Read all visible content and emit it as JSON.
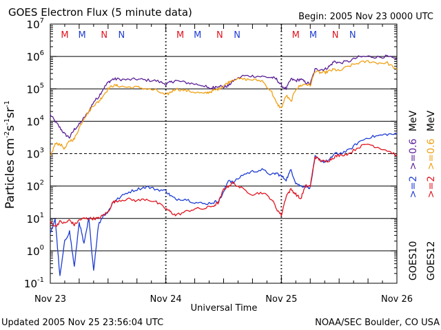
{
  "chart_data": {
    "type": "line",
    "title": "GOES Electron Flux (5 minute data)",
    "begin_label": "Begin: 2005 Nov 23 0000 UTC",
    "xlabel": "Universal Time",
    "ylabel_parts": {
      "base": "Particles cm",
      "exp1": "-2",
      "mid1": "s",
      "exp2": "-1",
      "mid2": "sr",
      "exp3": "-1"
    },
    "updated": "Updated 2005 Nov 25 23:56:04 UTC",
    "credit": "NOAA/SEC Boulder, CO USA",
    "xlim": [
      0,
      72
    ],
    "ylim_log10": [
      -1,
      7
    ],
    "x_ticks": [
      {
        "hour": 0,
        "label": "Nov 23"
      },
      {
        "hour": 24,
        "label": "Nov 24"
      },
      {
        "hour": 48,
        "label": "Nov 25"
      },
      {
        "hour": 72,
        "label": "Nov 26"
      }
    ],
    "y_ticks": [
      {
        "exp": -1,
        "mant": "10",
        "sup": "-1"
      },
      {
        "exp": 0,
        "mant": "10",
        "sup": "0"
      },
      {
        "exp": 1,
        "mant": "10",
        "sup": "1"
      },
      {
        "exp": 2,
        "mant": "10",
        "sup": "2"
      },
      {
        "exp": 3,
        "mant": "10",
        "sup": "3"
      },
      {
        "exp": 4,
        "mant": "10",
        "sup": "4"
      },
      {
        "exp": 5,
        "mant": "10",
        "sup": "5"
      },
      {
        "exp": 6,
        "mant": "10",
        "sup": "6"
      },
      {
        "exp": 7,
        "mant": "10",
        "sup": "7"
      }
    ],
    "gridlines_log10": [
      0,
      1,
      2,
      4,
      5,
      6
    ],
    "dashed_gridlines_log10": [
      3
    ],
    "midnight_dotted_hours": [
      24,
      48
    ],
    "markers": [
      {
        "label": "M",
        "hour": 3.0,
        "color": "#e0141e"
      },
      {
        "label": "M",
        "hour": 6.6,
        "color": "#1e3cd2"
      },
      {
        "label": "N",
        "hour": 11.2,
        "color": "#e0141e"
      },
      {
        "label": "N",
        "hour": 14.8,
        "color": "#1e3cd2"
      },
      {
        "label": "M",
        "hour": 27.0,
        "color": "#e0141e"
      },
      {
        "label": "M",
        "hour": 30.6,
        "color": "#1e3cd2"
      },
      {
        "label": "N",
        "hour": 35.2,
        "color": "#e0141e"
      },
      {
        "label": "N",
        "hour": 38.8,
        "color": "#1e3cd2"
      },
      {
        "label": "M",
        "hour": 51.0,
        "color": "#e0141e"
      },
      {
        "label": "M",
        "hour": 54.6,
        "color": "#1e3cd2"
      },
      {
        "label": "N",
        "hour": 59.2,
        "color": "#e0141e"
      },
      {
        "label": "N",
        "hour": 62.8,
        "color": "#1e3cd2"
      }
    ],
    "legend": [
      {
        "sat": "GOES10",
        "e2": ">=2",
        "e06": ">=0.6",
        "unit": "MeV",
        "color_e2": "#1e3cd2",
        "color_e06": "#5a1e96"
      },
      {
        "sat": "GOES12",
        "e2": ">=2",
        "e06": ">=0.6",
        "unit": "MeV",
        "color_e2": "#e0141e",
        "color_e06": "#f0a014"
      }
    ],
    "series": [
      {
        "name": "GOES10 >=0.6 MeV",
        "color": "#5a1e96",
        "points": [
          [
            0,
            4.2
          ],
          [
            1,
            4.0
          ],
          [
            2,
            3.8
          ],
          [
            3,
            3.6
          ],
          [
            4,
            3.5
          ],
          [
            5,
            3.75
          ],
          [
            6,
            3.9
          ],
          [
            7,
            4.1
          ],
          [
            8,
            4.3
          ],
          [
            9,
            4.6
          ],
          [
            10,
            4.75
          ],
          [
            11,
            5.0
          ],
          [
            12,
            5.2
          ],
          [
            13,
            5.3
          ],
          [
            14,
            5.3
          ],
          [
            16,
            5.28
          ],
          [
            18,
            5.3
          ],
          [
            20,
            5.27
          ],
          [
            22,
            5.25
          ],
          [
            24,
            5.15
          ],
          [
            25,
            5.2
          ],
          [
            26,
            5.25
          ],
          [
            28,
            5.2
          ],
          [
            30,
            5.15
          ],
          [
            32,
            5.1
          ],
          [
            33,
            5.0
          ],
          [
            34,
            5.05
          ],
          [
            35,
            5.1
          ],
          [
            36,
            5.05
          ],
          [
            37,
            5.1
          ],
          [
            38,
            5.25
          ],
          [
            40,
            5.4
          ],
          [
            42,
            5.4
          ],
          [
            44,
            5.38
          ],
          [
            46,
            5.35
          ],
          [
            47,
            5.3
          ],
          [
            48,
            5.1
          ],
          [
            49,
            5.0
          ],
          [
            50,
            5.3
          ],
          [
            51,
            5.25
          ],
          [
            52,
            5.3
          ],
          [
            53,
            5.2
          ],
          [
            54,
            5.15
          ],
          [
            55,
            5.6
          ],
          [
            56,
            5.6
          ],
          [
            57,
            5.6
          ],
          [
            58,
            5.7
          ],
          [
            59,
            5.85
          ],
          [
            60,
            5.8
          ],
          [
            62,
            5.85
          ],
          [
            64,
            5.98
          ],
          [
            66,
            6.0
          ],
          [
            68,
            5.98
          ],
          [
            70,
            6.0
          ],
          [
            72,
            5.9
          ]
        ]
      },
      {
        "name": "GOES12 >=0.6 MeV",
        "color": "#f0a014",
        "points": [
          [
            0,
            2.9
          ],
          [
            1,
            3.3
          ],
          [
            2,
            3.3
          ],
          [
            3,
            3.15
          ],
          [
            4,
            3.4
          ],
          [
            5,
            3.45
          ],
          [
            6,
            3.8
          ],
          [
            7,
            4.1
          ],
          [
            8,
            4.3
          ],
          [
            9,
            4.5
          ],
          [
            10,
            4.6
          ],
          [
            11,
            4.8
          ],
          [
            12,
            5.0
          ],
          [
            13,
            5.1
          ],
          [
            14,
            5.1
          ],
          [
            16,
            5.05
          ],
          [
            18,
            5.05
          ],
          [
            20,
            5.0
          ],
          [
            22,
            4.95
          ],
          [
            24,
            4.8
          ],
          [
            25,
            4.9
          ],
          [
            26,
            5.0
          ],
          [
            28,
            4.95
          ],
          [
            30,
            4.9
          ],
          [
            32,
            4.85
          ],
          [
            33,
            4.9
          ],
          [
            34,
            4.95
          ],
          [
            35,
            5.0
          ],
          [
            36,
            5.1
          ],
          [
            37,
            5.2
          ],
          [
            38,
            5.3
          ],
          [
            40,
            5.3
          ],
          [
            42,
            5.28
          ],
          [
            44,
            5.25
          ],
          [
            46,
            4.9
          ],
          [
            47,
            4.55
          ],
          [
            48,
            4.4
          ],
          [
            49,
            4.8
          ],
          [
            50,
            4.6
          ],
          [
            51,
            5.0
          ],
          [
            52,
            5.1
          ],
          [
            53,
            5.15
          ],
          [
            54,
            5.1
          ],
          [
            55,
            5.55
          ],
          [
            56,
            5.5
          ],
          [
            57,
            5.5
          ],
          [
            58,
            5.55
          ],
          [
            59,
            5.6
          ],
          [
            60,
            5.55
          ],
          [
            62,
            5.7
          ],
          [
            64,
            5.8
          ],
          [
            66,
            5.85
          ],
          [
            68,
            5.8
          ],
          [
            70,
            5.8
          ],
          [
            72,
            5.6
          ]
        ]
      },
      {
        "name": "GOES10 >=2 MeV",
        "color": "#1e3cd2",
        "points": [
          [
            0,
            0.5
          ],
          [
            1,
            1.0
          ],
          [
            2,
            -0.8
          ],
          [
            3,
            0.3
          ],
          [
            4,
            0.6
          ],
          [
            5,
            -0.5
          ],
          [
            6,
            0.9
          ],
          [
            7,
            0.2
          ],
          [
            8,
            1.0
          ],
          [
            9,
            -0.6
          ],
          [
            10,
            0.8
          ],
          [
            11,
            1.1
          ],
          [
            12,
            1.2
          ],
          [
            13,
            1.5
          ],
          [
            14,
            1.6
          ],
          [
            16,
            1.8
          ],
          [
            18,
            1.9
          ],
          [
            20,
            1.98
          ],
          [
            22,
            1.9
          ],
          [
            24,
            1.85
          ],
          [
            25,
            1.7
          ],
          [
            26,
            1.6
          ],
          [
            28,
            1.6
          ],
          [
            30,
            1.5
          ],
          [
            32,
            1.45
          ],
          [
            34,
            1.5
          ],
          [
            35,
            1.55
          ],
          [
            36,
            1.8
          ],
          [
            37,
            2.2
          ],
          [
            38,
            2.1
          ],
          [
            40,
            2.35
          ],
          [
            42,
            2.45
          ],
          [
            44,
            2.5
          ],
          [
            46,
            2.35
          ],
          [
            47,
            2.4
          ],
          [
            48,
            2.3
          ],
          [
            49,
            2.2
          ],
          [
            50,
            2.5
          ],
          [
            51,
            2.1
          ],
          [
            52,
            2.0
          ],
          [
            53,
            2.0
          ],
          [
            54,
            1.95
          ],
          [
            55,
            2.9
          ],
          [
            56,
            2.8
          ],
          [
            57,
            2.75
          ],
          [
            58,
            2.8
          ],
          [
            59,
            3.0
          ],
          [
            60,
            3.0
          ],
          [
            62,
            3.1
          ],
          [
            64,
            3.35
          ],
          [
            66,
            3.5
          ],
          [
            68,
            3.55
          ],
          [
            70,
            3.6
          ],
          [
            72,
            3.6
          ]
        ]
      },
      {
        "name": "GOES12 >=2 MeV",
        "color": "#e0141e",
        "points": [
          [
            0,
            0.9
          ],
          [
            1,
            0.75
          ],
          [
            2,
            0.9
          ],
          [
            3,
            0.85
          ],
          [
            4,
            0.95
          ],
          [
            5,
            0.8
          ],
          [
            6,
            0.95
          ],
          [
            7,
            1.0
          ],
          [
            8,
            1.0
          ],
          [
            9,
            1.0
          ],
          [
            10,
            1.0
          ],
          [
            11,
            1.1
          ],
          [
            12,
            1.2
          ],
          [
            13,
            1.5
          ],
          [
            14,
            1.55
          ],
          [
            16,
            1.6
          ],
          [
            18,
            1.55
          ],
          [
            20,
            1.6
          ],
          [
            22,
            1.5
          ],
          [
            24,
            1.3
          ],
          [
            25,
            1.2
          ],
          [
            26,
            1.1
          ],
          [
            28,
            1.2
          ],
          [
            30,
            1.3
          ],
          [
            32,
            1.3
          ],
          [
            34,
            1.4
          ],
          [
            35,
            1.5
          ],
          [
            36,
            1.9
          ],
          [
            37,
            2.0
          ],
          [
            38,
            2.1
          ],
          [
            40,
            1.9
          ],
          [
            42,
            1.75
          ],
          [
            44,
            1.8
          ],
          [
            46,
            1.6
          ],
          [
            47,
            1.3
          ],
          [
            48,
            1.1
          ],
          [
            49,
            1.7
          ],
          [
            50,
            1.9
          ],
          [
            51,
            1.75
          ],
          [
            52,
            1.6
          ],
          [
            53,
            2.0
          ],
          [
            54,
            2.0
          ],
          [
            55,
            2.9
          ],
          [
            56,
            2.8
          ],
          [
            57,
            2.75
          ],
          [
            58,
            2.8
          ],
          [
            59,
            2.9
          ],
          [
            60,
            2.95
          ],
          [
            62,
            3.0
          ],
          [
            64,
            3.2
          ],
          [
            66,
            3.3
          ],
          [
            68,
            3.2
          ],
          [
            70,
            3.1
          ],
          [
            72,
            2.95
          ]
        ]
      }
    ]
  }
}
